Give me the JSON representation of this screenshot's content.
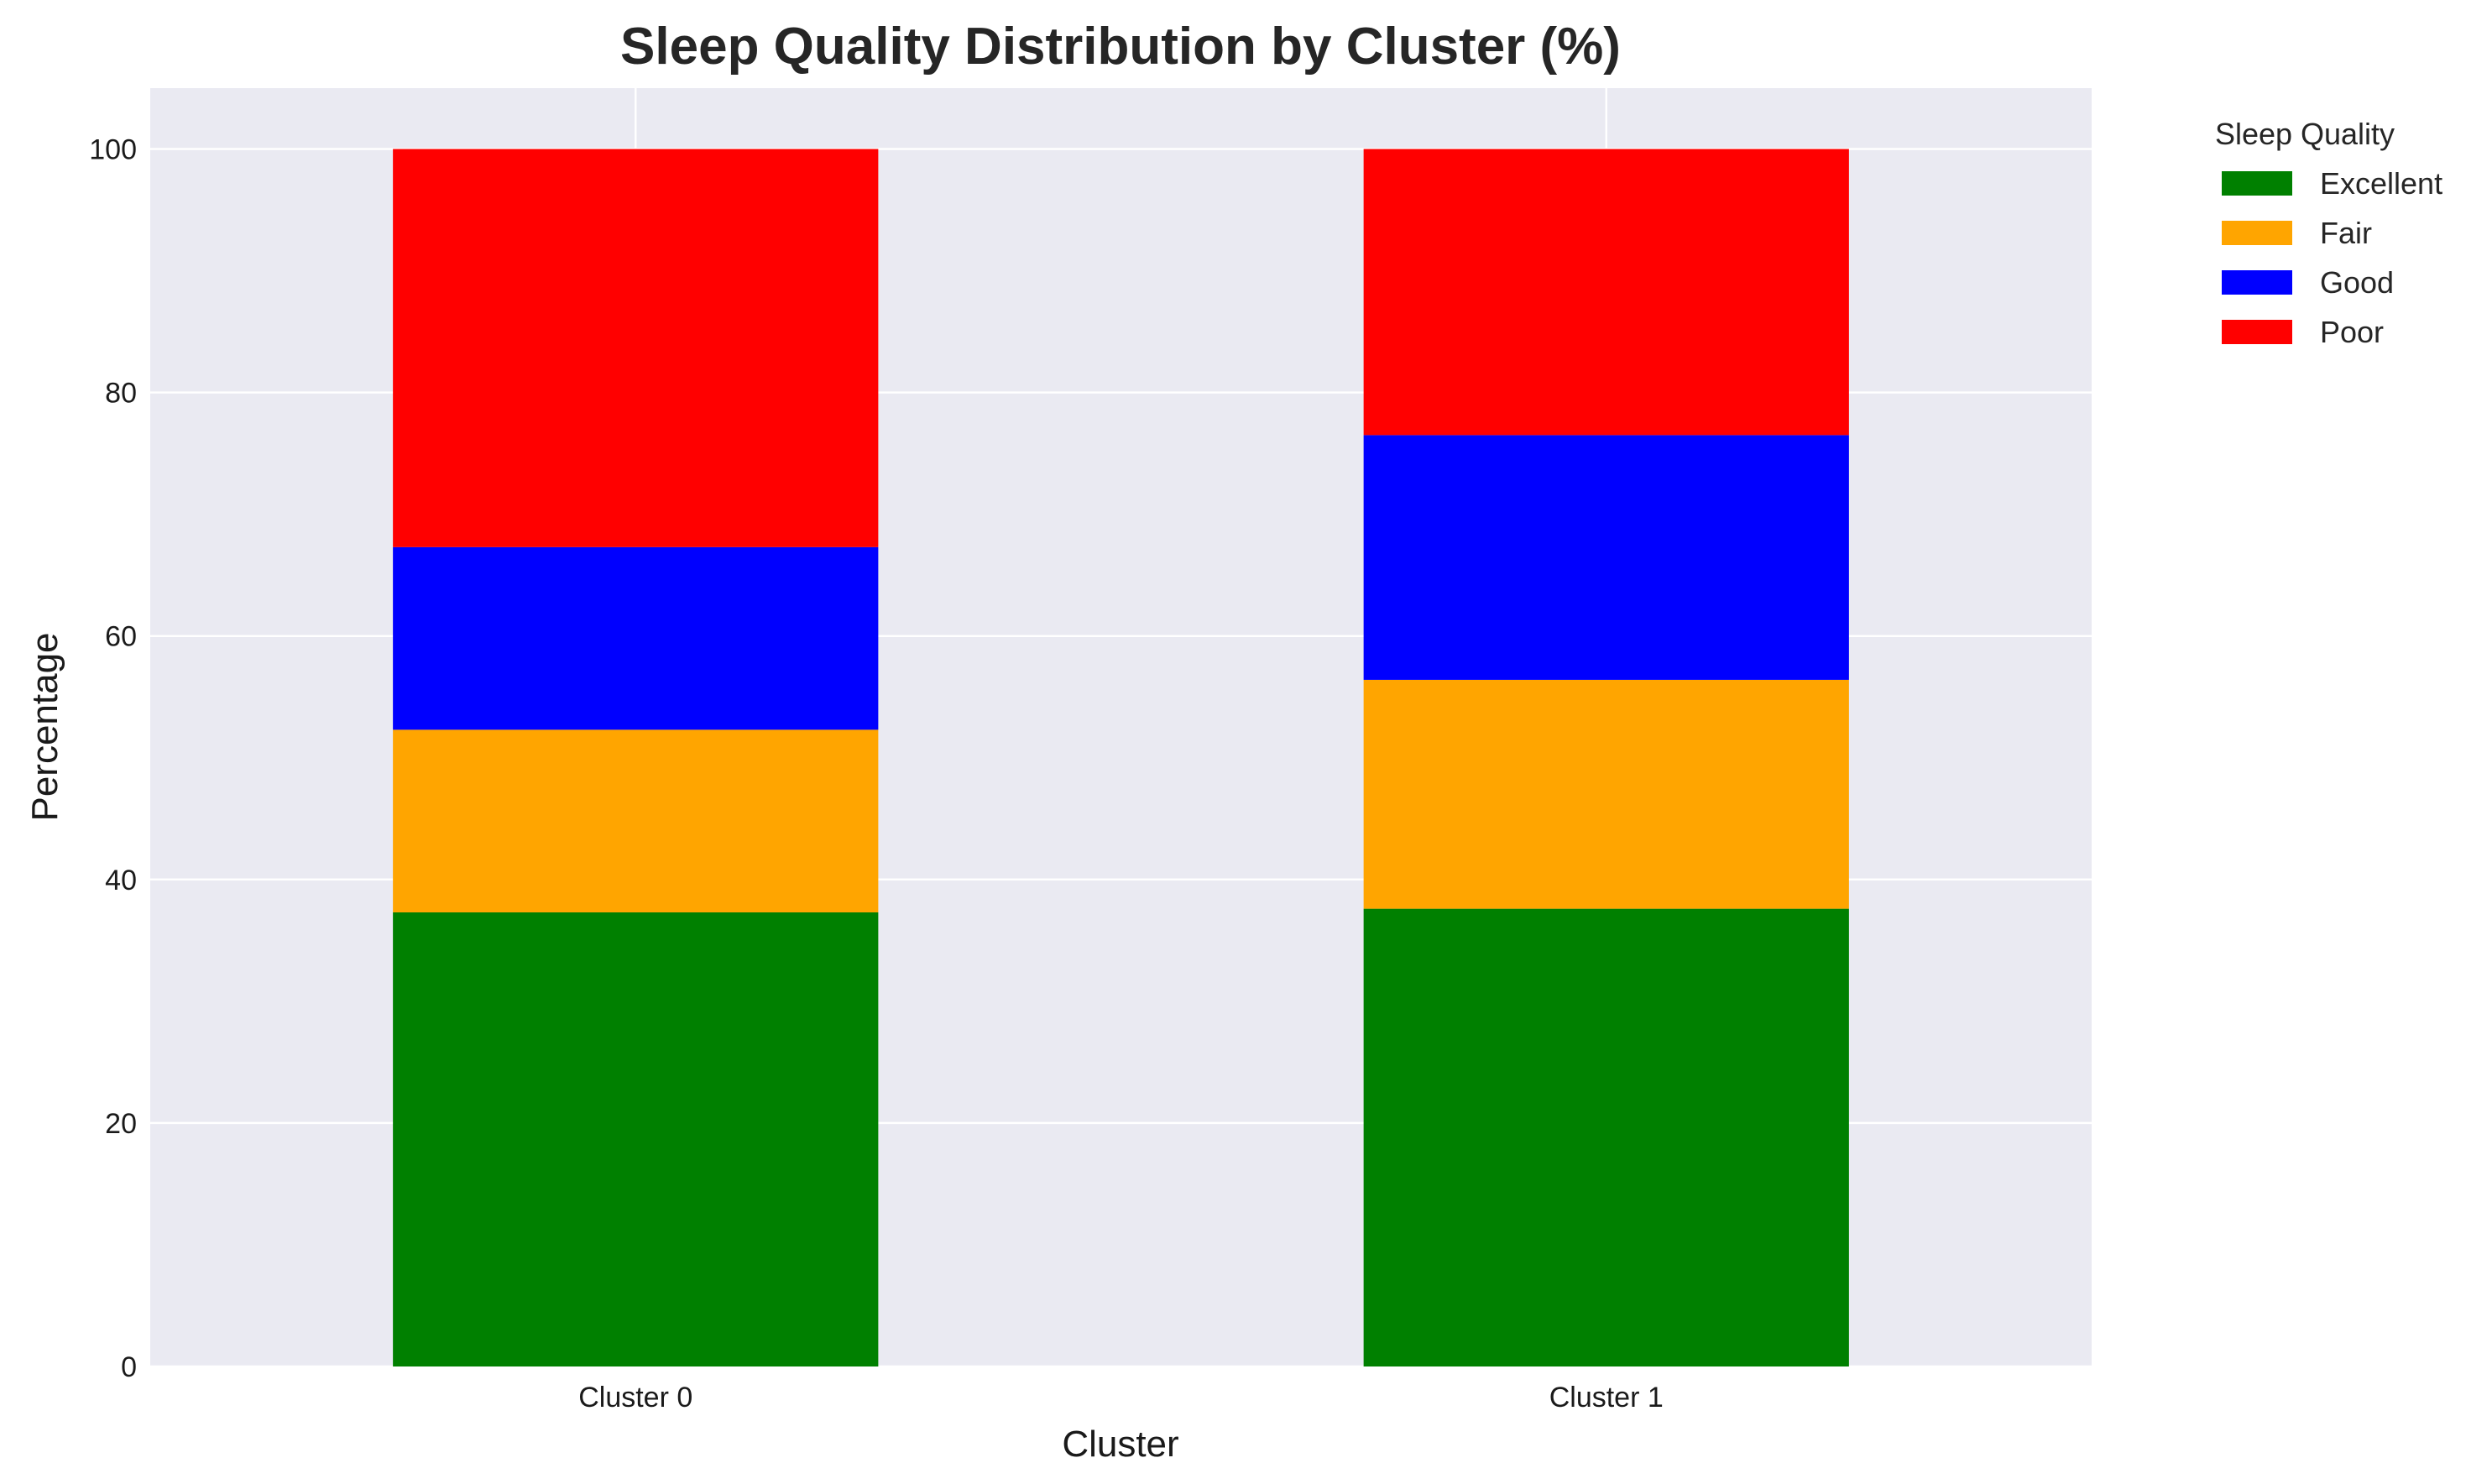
{
  "chart_data": {
    "type": "bar",
    "stacked": true,
    "title": "Sleep Quality Distribution by Cluster (%)",
    "xlabel": "Cluster",
    "ylabel": "Percentage",
    "categories": [
      "Cluster 0",
      "Cluster 1"
    ],
    "ylim": [
      0,
      105
    ],
    "yticks": [
      0,
      20,
      40,
      60,
      80,
      100
    ],
    "grid": true,
    "legend": {
      "title": "Sleep Quality",
      "placement": "outside-top-right"
    },
    "series": [
      {
        "name": "Excellent",
        "color": "#008000",
        "values": [
          37.3,
          37.6
        ]
      },
      {
        "name": "Fair",
        "color": "#FFA500",
        "values": [
          15.0,
          18.8
        ]
      },
      {
        "name": "Good",
        "color": "#0000FF",
        "values": [
          15.0,
          20.1
        ]
      },
      {
        "name": "Poor",
        "color": "#FF0000",
        "values": [
          32.7,
          23.5
        ]
      }
    ]
  }
}
